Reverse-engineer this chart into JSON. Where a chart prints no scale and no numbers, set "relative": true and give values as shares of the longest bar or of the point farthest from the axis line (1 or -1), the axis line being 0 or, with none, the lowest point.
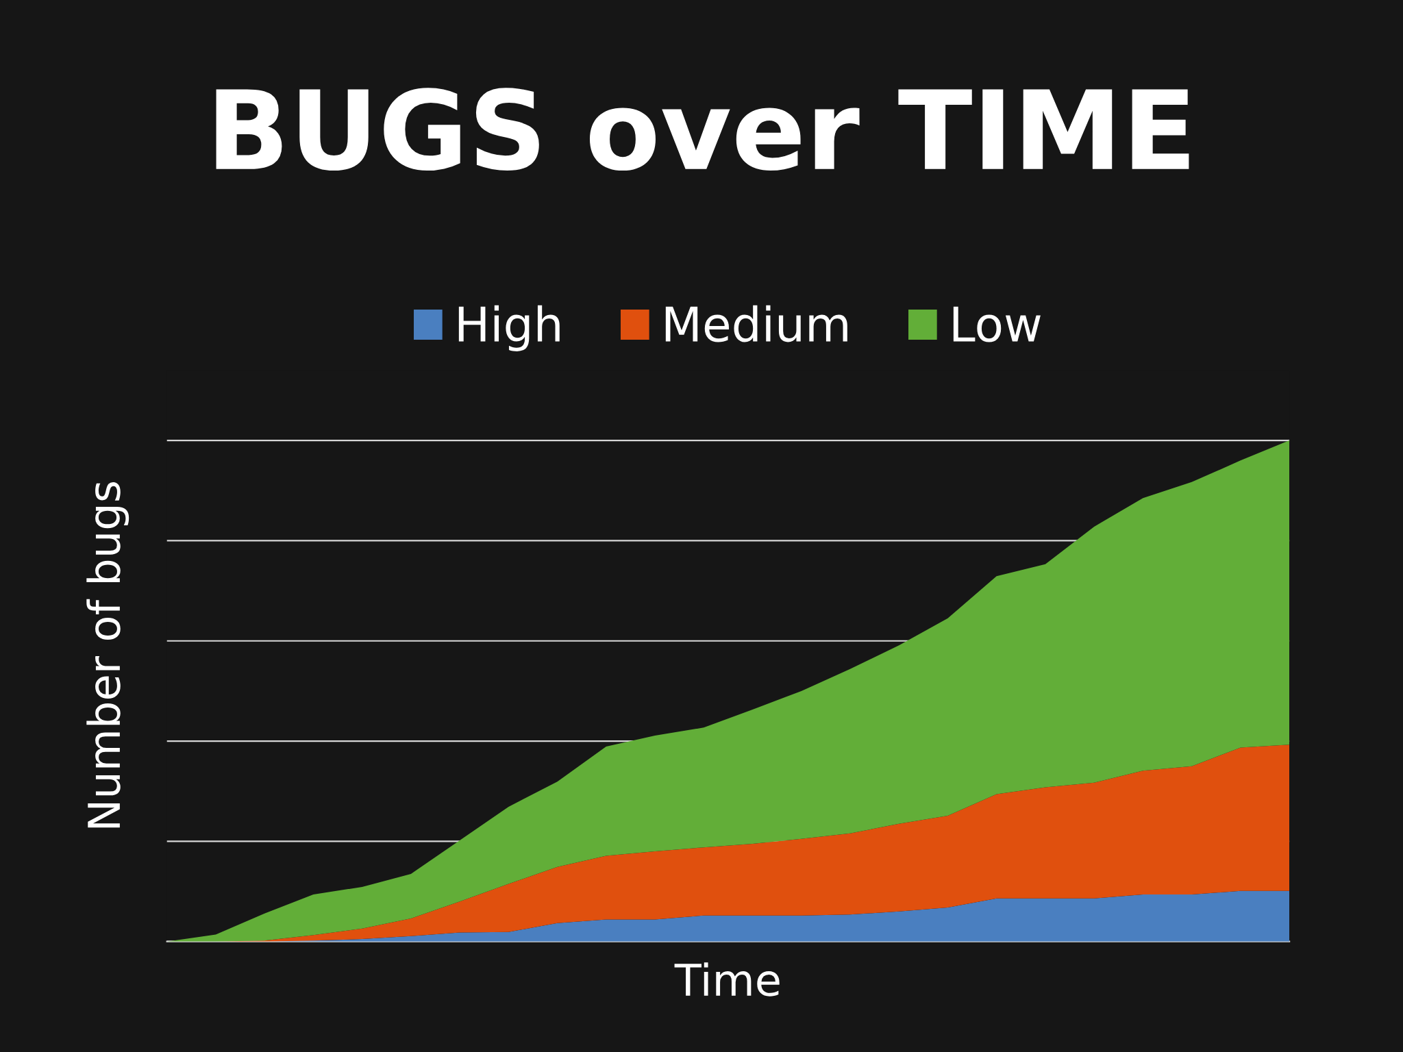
{
  "chart_data": {
    "type": "area",
    "stacked": true,
    "relative": true,
    "title": "BUGS over TIME",
    "xlabel": "Time",
    "ylabel": "Number of bugs",
    "grid": "y",
    "legend": "top",
    "tick_labels": false,
    "categories": [
      null,
      null,
      null,
      null,
      null,
      null,
      null,
      null,
      null,
      null,
      null,
      null,
      null,
      null,
      null,
      null,
      null,
      null,
      null,
      null,
      null,
      null,
      null,
      null
    ],
    "series": [
      {
        "name": "High",
        "color": "#4a7fc0",
        "values": [
          0,
          0,
          0,
          0.002,
          0.005,
          0.011,
          0.018,
          0.019,
          0.037,
          0.044,
          0.044,
          0.052,
          0.052,
          0.052,
          0.054,
          0.06,
          0.068,
          0.086,
          0.086,
          0.086,
          0.094,
          0.094,
          0.101,
          0.101
        ]
      },
      {
        "name": "Medium",
        "color": "#e0500e",
        "values": [
          0,
          0,
          0.002,
          0.011,
          0.021,
          0.035,
          0.062,
          0.096,
          0.112,
          0.127,
          0.136,
          0.136,
          0.143,
          0.153,
          0.162,
          0.175,
          0.183,
          0.208,
          0.222,
          0.231,
          0.247,
          0.256,
          0.286,
          0.292
        ]
      },
      {
        "name": "Low",
        "color": "#62ae38",
        "values": [
          0,
          0.014,
          0.054,
          0.081,
          0.083,
          0.089,
          0.122,
          0.154,
          0.17,
          0.218,
          0.231,
          0.239,
          0.268,
          0.295,
          0.328,
          0.356,
          0.394,
          0.435,
          0.445,
          0.511,
          0.544,
          0.567,
          0.573,
          0.607
        ]
      }
    ]
  }
}
